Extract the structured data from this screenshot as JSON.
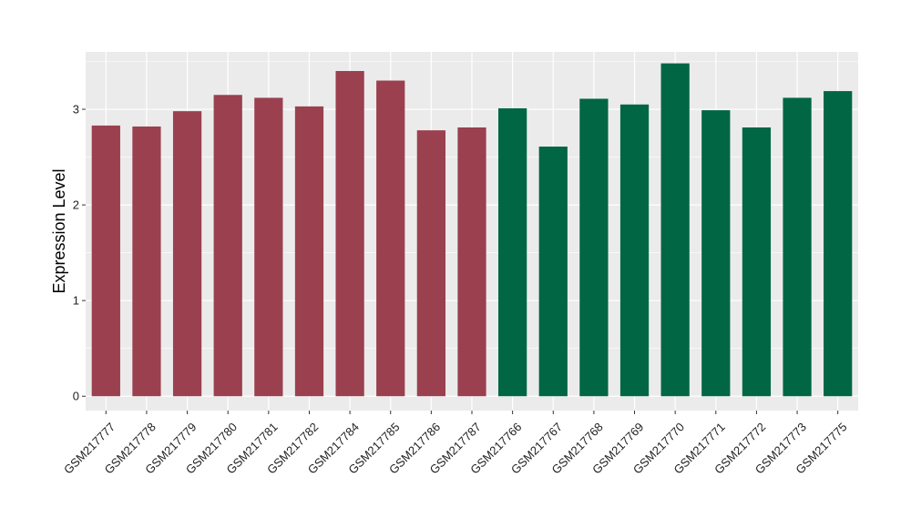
{
  "chart_data": {
    "type": "bar",
    "title": "",
    "xlabel": "",
    "ylabel": "Expression Level",
    "ylim": [
      -0.15,
      3.6
    ],
    "yticks": [
      0,
      1,
      2,
      3
    ],
    "grid": true,
    "categories": [
      "GSM217777",
      "GSM217778",
      "GSM217779",
      "GSM217780",
      "GSM217781",
      "GSM217782",
      "GSM217784",
      "GSM217785",
      "GSM217786",
      "GSM217787",
      "GSM217766",
      "GSM217767",
      "GSM217768",
      "GSM217769",
      "GSM217770",
      "GSM217771",
      "GSM217772",
      "GSM217773",
      "GSM217775"
    ],
    "values": [
      2.83,
      2.82,
      2.98,
      3.15,
      3.12,
      3.03,
      3.4,
      3.3,
      2.78,
      2.81,
      3.01,
      2.61,
      3.11,
      3.05,
      3.48,
      2.99,
      2.81,
      3.12,
      3.19
    ],
    "group_colors": [
      "#9a404f",
      "#9a404f",
      "#9a404f",
      "#9a404f",
      "#9a404f",
      "#9a404f",
      "#9a404f",
      "#9a404f",
      "#9a404f",
      "#9a404f",
      "#006644",
      "#006644",
      "#006644",
      "#006644",
      "#006644",
      "#006644",
      "#006644",
      "#006644",
      "#006644"
    ],
    "panel_background": "#ebebeb",
    "grid_color": "#ffffff"
  }
}
